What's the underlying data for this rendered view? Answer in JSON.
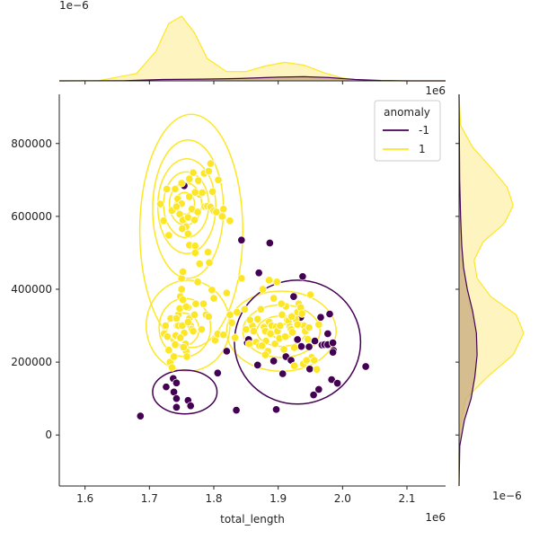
{
  "chart_data": {
    "type": "scatter",
    "title": "",
    "xlabel": "total_length",
    "ylabel": "",
    "x_offset_label": "1e6",
    "y_offset_label": "1e6",
    "marginal_x_offset_label": "1e−6",
    "marginal_y_offset_label": "1e−6",
    "xlim": [
      1.56,
      2.16
    ],
    "ylim": [
      -140000,
      935000
    ],
    "x_ticks": [
      1.6,
      1.7,
      1.8,
      1.9,
      2.0,
      2.1
    ],
    "x_tick_labels": [
      "1.6",
      "1.7",
      "1.8",
      "1.9",
      "2.0",
      "2.1"
    ],
    "y_ticks": [
      0,
      200000,
      400000,
      600000,
      800000
    ],
    "y_tick_labels": [
      "0",
      "200000",
      "400000",
      "600000",
      "800000"
    ],
    "grid": false,
    "legend": {
      "title": "anomaly",
      "placement": "top-right",
      "entries": [
        {
          "label": "-1",
          "color": "#440154"
        },
        {
          "label": "1",
          "color": "#fde725"
        }
      ]
    },
    "series": [
      {
        "name": "-1",
        "color": "#440154",
        "points": [
          [
            1.686,
            52000
          ],
          [
            1.726,
            132000
          ],
          [
            1.737,
            155000
          ],
          [
            1.738,
            118000
          ],
          [
            1.742,
            143000
          ],
          [
            1.742,
            100000
          ],
          [
            1.742,
            76000
          ],
          [
            1.76,
            95000
          ],
          [
            1.764,
            80000
          ],
          [
            1.754,
            684000
          ],
          [
            1.806,
            170000
          ],
          [
            1.82,
            230000
          ],
          [
            1.835,
            68000
          ],
          [
            1.843,
            535000
          ],
          [
            1.852,
            253000
          ],
          [
            1.854,
            262000
          ],
          [
            1.868,
            192000
          ],
          [
            1.87,
            445000
          ],
          [
            1.887,
            527000
          ],
          [
            1.893,
            203000
          ],
          [
            1.897,
            70000
          ],
          [
            1.907,
            168000
          ],
          [
            1.912,
            215000
          ],
          [
            1.92,
            205000
          ],
          [
            1.93,
            262000
          ],
          [
            1.924,
            380000
          ],
          [
            1.935,
            323000
          ],
          [
            1.936,
            243000
          ],
          [
            1.938,
            435000
          ],
          [
            1.943,
            293000
          ],
          [
            1.948,
            242000
          ],
          [
            1.949,
            181000
          ],
          [
            1.957,
            258000
          ],
          [
            1.963,
            125000
          ],
          [
            1.966,
            323000
          ],
          [
            1.968,
            247000
          ],
          [
            1.972,
            248000
          ],
          [
            1.977,
            248000
          ],
          [
            1.98,
            332000
          ],
          [
            1.985,
            253000
          ],
          [
            1.986,
            232000
          ],
          [
            1.955,
            110000
          ],
          [
            1.985,
            227000
          ],
          [
            1.983,
            152000
          ],
          [
            1.992,
            142000
          ],
          [
            2.036,
            188000
          ],
          [
            1.977,
            278000
          ]
        ]
      },
      {
        "name": "1",
        "color": "#fde725",
        "points": [
          [
            1.717,
            634000
          ],
          [
            1.722,
            588000
          ],
          [
            1.727,
            675000
          ],
          [
            1.73,
            548000
          ],
          [
            1.735,
            616000
          ],
          [
            1.74,
            675000
          ],
          [
            1.744,
            648000
          ],
          [
            1.747,
            606000
          ],
          [
            1.75,
            635000
          ],
          [
            1.752,
            590000
          ],
          [
            1.757,
            572000
          ],
          [
            1.76,
            597000
          ],
          [
            1.762,
            654000
          ],
          [
            1.766,
            620000
          ],
          [
            1.77,
            590000
          ],
          [
            1.775,
            612000
          ],
          [
            1.778,
            660000
          ],
          [
            1.782,
            665000
          ],
          [
            1.786,
            627000
          ],
          [
            1.79,
            628000
          ],
          [
            1.795,
            626000
          ],
          [
            1.8,
            615000
          ],
          [
            1.785,
            718000
          ],
          [
            1.792,
            724000
          ],
          [
            1.795,
            745000
          ],
          [
            1.768,
            720000
          ],
          [
            1.776,
            698000
          ],
          [
            1.762,
            703000
          ],
          [
            1.75,
            691000
          ],
          [
            1.771,
            666000
          ],
          [
            1.742,
            627000
          ],
          [
            1.751,
            566000
          ],
          [
            1.76,
            552000
          ],
          [
            1.762,
            521000
          ],
          [
            1.771,
            519000
          ],
          [
            1.771,
            500000
          ],
          [
            1.791,
            502000
          ],
          [
            1.793,
            473000
          ],
          [
            1.825,
            588000
          ],
          [
            1.813,
            600000
          ],
          [
            1.815,
            620000
          ],
          [
            1.804,
            612000
          ],
          [
            1.798,
            668000
          ],
          [
            1.807,
            700000
          ],
          [
            1.723,
            278000
          ],
          [
            1.725,
            300000
          ],
          [
            1.728,
            270000
          ],
          [
            1.73,
            233000
          ],
          [
            1.732,
            200000
          ],
          [
            1.735,
            185000
          ],
          [
            1.738,
            215000
          ],
          [
            1.74,
            248000
          ],
          [
            1.741,
            273000
          ],
          [
            1.743,
            300000
          ],
          [
            1.745,
            330000
          ],
          [
            1.747,
            347000
          ],
          [
            1.748,
            380000
          ],
          [
            1.75,
            400000
          ],
          [
            1.75,
            430000
          ],
          [
            1.752,
            448000
          ],
          [
            1.754,
            280000
          ],
          [
            1.756,
            250000
          ],
          [
            1.757,
            230000
          ],
          [
            1.758,
            215000
          ],
          [
            1.76,
            350000
          ],
          [
            1.762,
            320000
          ],
          [
            1.764,
            300000
          ],
          [
            1.766,
            290000
          ],
          [
            1.768,
            285000
          ],
          [
            1.77,
            330000
          ],
          [
            1.772,
            360000
          ],
          [
            1.775,
            420000
          ],
          [
            1.778,
            470000
          ],
          [
            1.781,
            290000
          ],
          [
            1.784,
            360000
          ],
          [
            1.788,
            330000
          ],
          [
            1.792,
            325000
          ],
          [
            1.797,
            398000
          ],
          [
            1.8,
            375000
          ],
          [
            1.802,
            260000
          ],
          [
            1.806,
            277000
          ],
          [
            1.745,
            300000
          ],
          [
            1.733,
            320000
          ],
          [
            1.751,
            300000
          ],
          [
            1.742,
            320000
          ],
          [
            1.752,
            371000
          ],
          [
            1.757,
            352000
          ],
          [
            1.76,
            310000
          ],
          [
            1.748,
            267000
          ],
          [
            1.753,
            241000
          ],
          [
            1.815,
            275000
          ],
          [
            1.82,
            390000
          ],
          [
            1.825,
            330000
          ],
          [
            1.828,
            308000
          ],
          [
            1.833,
            267000
          ],
          [
            1.836,
            337000
          ],
          [
            1.843,
            430000
          ],
          [
            1.848,
            345000
          ],
          [
            1.855,
            250000
          ],
          [
            1.86,
            300000
          ],
          [
            1.862,
            285000
          ],
          [
            1.866,
            255000
          ],
          [
            1.871,
            245000
          ],
          [
            1.873,
            345000
          ],
          [
            1.876,
            400000
          ],
          [
            1.878,
            296000
          ],
          [
            1.88,
            285000
          ],
          [
            1.881,
            258000
          ],
          [
            1.884,
            230000
          ],
          [
            1.886,
            310000
          ],
          [
            1.888,
            278000
          ],
          [
            1.89,
            300000
          ],
          [
            1.893,
            375000
          ],
          [
            1.895,
            250000
          ],
          [
            1.897,
            297000
          ],
          [
            1.899,
            285000
          ],
          [
            1.902,
            265000
          ],
          [
            1.903,
            300000
          ],
          [
            1.906,
            330000
          ],
          [
            1.909,
            235000
          ],
          [
            1.912,
            353000
          ],
          [
            1.914,
            315000
          ],
          [
            1.916,
            313000
          ],
          [
            1.918,
            297000
          ],
          [
            1.92,
            290000
          ],
          [
            1.922,
            282000
          ],
          [
            1.925,
            240000
          ],
          [
            1.927,
            318000
          ],
          [
            1.93,
            337000
          ],
          [
            1.932,
            360000
          ],
          [
            1.935,
            350000
          ],
          [
            1.937,
            333000
          ],
          [
            1.94,
            300000
          ],
          [
            1.942,
            285000
          ],
          [
            1.946,
            263000
          ],
          [
            1.948,
            295000
          ],
          [
            1.952,
            213000
          ],
          [
            1.956,
            205000
          ],
          [
            1.96,
            180000
          ],
          [
            1.963,
            303000
          ],
          [
            1.95,
            385000
          ],
          [
            1.875,
            245000
          ],
          [
            1.868,
            318000
          ],
          [
            1.886,
            425000
          ],
          [
            1.905,
            360000
          ],
          [
            1.911,
            270000
          ],
          [
            1.925,
            190000
          ],
          [
            1.939,
            195000
          ],
          [
            1.944,
            205000
          ],
          [
            1.88,
            220000
          ],
          [
            1.85,
            290000
          ],
          [
            1.856,
            316000
          ],
          [
            1.898,
            420000
          ],
          [
            1.93,
            303000
          ],
          [
            1.921,
            325000
          ]
        ]
      }
    ],
    "marginal_x": {
      "axis_range": [
        1.56,
        2.16
      ],
      "series": [
        {
          "name": "1",
          "x": [
            1.56,
            1.62,
            1.68,
            1.71,
            1.73,
            1.75,
            1.77,
            1.79,
            1.82,
            1.85,
            1.88,
            1.91,
            1.94,
            1.97,
            2.0,
            2.03,
            2.06,
            2.1,
            2.16
          ],
          "density": [
            0,
            0.0,
            0.8,
            3.2,
            6.2,
            7.0,
            5.2,
            2.4,
            1.0,
            1.0,
            1.6,
            2.0,
            1.7,
            0.9,
            0.3,
            0.05,
            0,
            0,
            0
          ]
        },
        {
          "name": "-1",
          "x": [
            1.56,
            1.66,
            1.72,
            1.78,
            1.84,
            1.9,
            1.94,
            1.98,
            2.02,
            2.06,
            2.1,
            2.16
          ],
          "density": [
            0,
            0.02,
            0.15,
            0.18,
            0.25,
            0.4,
            0.45,
            0.35,
            0.15,
            0.04,
            0.0,
            0
          ]
        }
      ]
    },
    "marginal_y": {
      "axis_range": [
        -140000,
        935000
      ],
      "series": [
        {
          "name": "1",
          "y": [
            -140000,
            -50000,
            20000,
            100000,
            160000,
            220000,
            280000,
            330000,
            380000,
            430000,
            480000,
            530000,
            580000,
            630000,
            680000,
            730000,
            790000,
            850000,
            935000
          ],
          "density": [
            0,
            0.0,
            0.05,
            0.45,
            1.9,
            3.6,
            4.3,
            3.8,
            2.1,
            1.2,
            1.0,
            1.6,
            3.0,
            3.6,
            3.2,
            2.2,
            0.9,
            0.1,
            0
          ]
        },
        {
          "name": "-1",
          "y": [
            -140000,
            -30000,
            40000,
            100000,
            160000,
            220000,
            280000,
            340000,
            400000,
            460000,
            520000,
            600000,
            700000,
            935000
          ],
          "density": [
            0,
            0.05,
            0.35,
            0.8,
            1.05,
            1.2,
            1.15,
            0.9,
            0.55,
            0.3,
            0.18,
            0.1,
            0.04,
            0
          ]
        }
      ]
    },
    "kde_contours": [
      {
        "series": "1",
        "color": "#fde725",
        "rings": [
          {
            "cx": 1.765,
            "cy": 560000,
            "rx": 0.08,
            "ry": 320000
          },
          {
            "cx": 1.76,
            "cy": 620000,
            "rx": 0.055,
            "ry": 190000
          },
          {
            "cx": 1.758,
            "cy": 628000,
            "rx": 0.045,
            "ry": 130000
          },
          {
            "cx": 1.757,
            "cy": 632000,
            "rx": 0.035,
            "ry": 90000
          },
          {
            "cx": 1.756,
            "cy": 634000,
            "rx": 0.025,
            "ry": 58000
          },
          {
            "cx": 1.755,
            "cy": 636000,
            "rx": 0.015,
            "ry": 30000
          },
          {
            "cx": 1.76,
            "cy": 300000,
            "rx": 0.065,
            "ry": 125000
          },
          {
            "cx": 1.755,
            "cy": 295000,
            "rx": 0.04,
            "ry": 80000
          },
          {
            "cx": 1.752,
            "cy": 290000,
            "rx": 0.025,
            "ry": 45000
          },
          {
            "cx": 1.905,
            "cy": 285000,
            "rx": 0.085,
            "ry": 110000
          },
          {
            "cx": 1.905,
            "cy": 285000,
            "rx": 0.06,
            "ry": 72000
          },
          {
            "cx": 1.905,
            "cy": 285000,
            "rx": 0.038,
            "ry": 42000
          },
          {
            "cx": 1.905,
            "cy": 285000,
            "rx": 0.018,
            "ry": 20000
          }
        ]
      },
      {
        "series": "-1",
        "color": "#440154",
        "rings": [
          {
            "cx": 1.755,
            "cy": 118000,
            "rx": 0.05,
            "ry": 60000
          },
          {
            "cx": 1.93,
            "cy": 255000,
            "rx": 0.098,
            "ry": 170000
          }
        ]
      }
    ]
  }
}
